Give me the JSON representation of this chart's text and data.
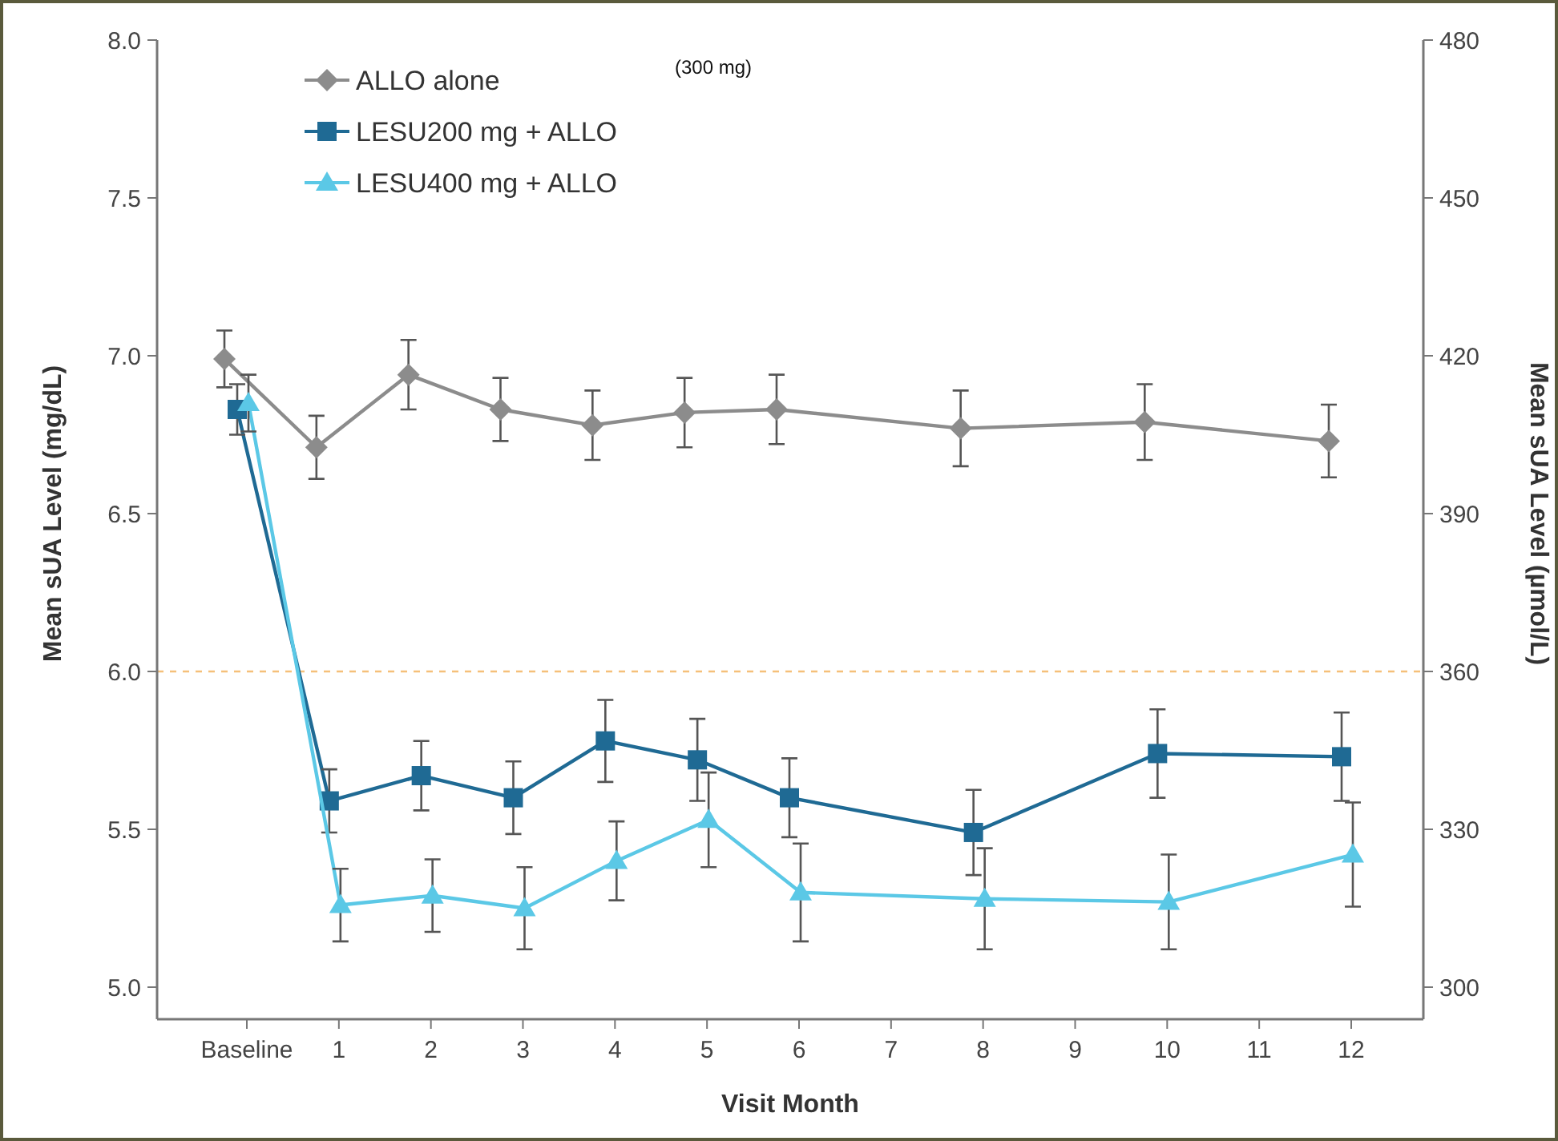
{
  "chart_data": {
    "type": "line",
    "xlabel": "Visit Month",
    "ylabel": "Mean sUA Level (mg/dL)",
    "y2label": "Mean sUA Level (µmol/L)",
    "annotations": [
      "(300 mg)"
    ],
    "categories": [
      "Baseline",
      "1",
      "2",
      "3",
      "4",
      "5",
      "6",
      "7",
      "8",
      "9",
      "10",
      "11",
      "12"
    ],
    "series": [
      {
        "name": "ALLO alone",
        "color": "#8c8c8c",
        "marker": "diamond",
        "values": [
          6.99,
          6.71,
          6.94,
          6.83,
          6.78,
          6.82,
          6.83,
          null,
          6.77,
          null,
          6.79,
          null,
          6.73
        ],
        "errors": [
          0.09,
          0.1,
          0.11,
          0.1,
          0.11,
          0.11,
          0.11,
          null,
          0.12,
          null,
          0.12,
          null,
          0.115
        ]
      },
      {
        "name": "LESU200 mg + ALLO",
        "color": "#1f6a94",
        "marker": "square",
        "values": [
          6.83,
          5.59,
          5.67,
          5.6,
          5.78,
          5.72,
          5.6,
          null,
          5.49,
          null,
          5.74,
          null,
          5.73
        ],
        "errors": [
          0.08,
          0.1,
          0.11,
          0.115,
          0.13,
          0.13,
          0.125,
          null,
          0.135,
          null,
          0.14,
          null,
          0.14
        ]
      },
      {
        "name": "LESU400 mg + ALLO",
        "color": "#5bc8e6",
        "marker": "triangle",
        "values": [
          6.85,
          5.26,
          5.29,
          5.25,
          5.4,
          5.53,
          5.3,
          null,
          5.28,
          null,
          5.27,
          null,
          5.42
        ],
        "errors": [
          0.09,
          0.115,
          0.115,
          0.13,
          0.125,
          0.15,
          0.155,
          null,
          0.16,
          null,
          0.15,
          null,
          0.165
        ]
      }
    ],
    "ylim": [
      5.0,
      8.0
    ],
    "yticks": [
      {
        "value": 5,
        "label": "5.0"
      },
      {
        "value": 5.5,
        "label": "5.5"
      },
      {
        "value": 6,
        "label": "6.0"
      },
      {
        "value": 6.5,
        "label": "6.5"
      },
      {
        "value": 7,
        "label": "7.0"
      },
      {
        "value": 7.5,
        "label": "7.5"
      },
      {
        "value": 8,
        "label": "8.0"
      }
    ],
    "y2lim": [
      300,
      480
    ],
    "y2ticks": [
      300,
      330,
      360,
      390,
      420,
      450,
      480
    ],
    "ref_lines": [
      {
        "axis": "y",
        "value": 6.0,
        "color": "#f5c07a",
        "line_style": "dashed"
      }
    ],
    "grid": false,
    "legend": "top left",
    "line_style": "solid"
  }
}
